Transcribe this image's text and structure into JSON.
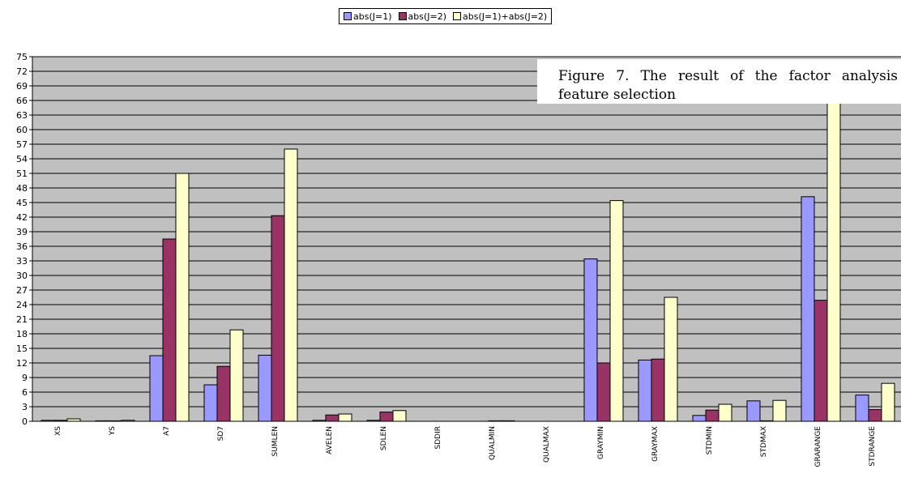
{
  "chart_data": {
    "type": "bar",
    "title": "",
    "xlabel": "",
    "ylabel": "",
    "ylim": [
      0,
      75
    ],
    "yticks": [
      0,
      3,
      6,
      9,
      12,
      15,
      18,
      21,
      24,
      27,
      30,
      33,
      36,
      39,
      42,
      45,
      48,
      51,
      54,
      57,
      60,
      63,
      66,
      69,
      72,
      75
    ],
    "grid": true,
    "legend_position": "top-center",
    "categories": [
      "XS",
      "YS",
      "A7",
      "SD7",
      "SUMLEN",
      "AVELEN",
      "SDLEN",
      "SDDIR",
      "QUALMIN",
      "QUALMAX",
      "GRAYMIN",
      "GRAYMAX",
      "STDMIN",
      "STDMAX",
      "GRARANGE",
      "STDRANGE"
    ],
    "series": [
      {
        "name": "abs(J=1)",
        "color": "#9999ff",
        "values": [
          0.2,
          0.1,
          13.5,
          7.5,
          13.6,
          0.2,
          0.2,
          0,
          0,
          0,
          33.4,
          12.6,
          1.2,
          4.2,
          46.2,
          5.4
        ]
      },
      {
        "name": "abs(J=2)",
        "color": "#993366",
        "values": [
          0.2,
          0.1,
          37.5,
          11.3,
          42.3,
          1.3,
          1.9,
          0,
          0.1,
          0,
          12,
          12.8,
          2.3,
          0.1,
          24.9,
          2.4
        ]
      },
      {
        "name": "abs(J=1)+abs(J=2)",
        "color": "#ffffcc",
        "values": [
          0.5,
          0.2,
          51,
          18.8,
          56,
          1.5,
          2.2,
          0,
          0.1,
          0,
          45.4,
          25.5,
          3.5,
          4.3,
          71,
          7.8
        ]
      }
    ]
  },
  "caption": {
    "text": "Figure 7. The result of the factor analysis feature selection"
  }
}
